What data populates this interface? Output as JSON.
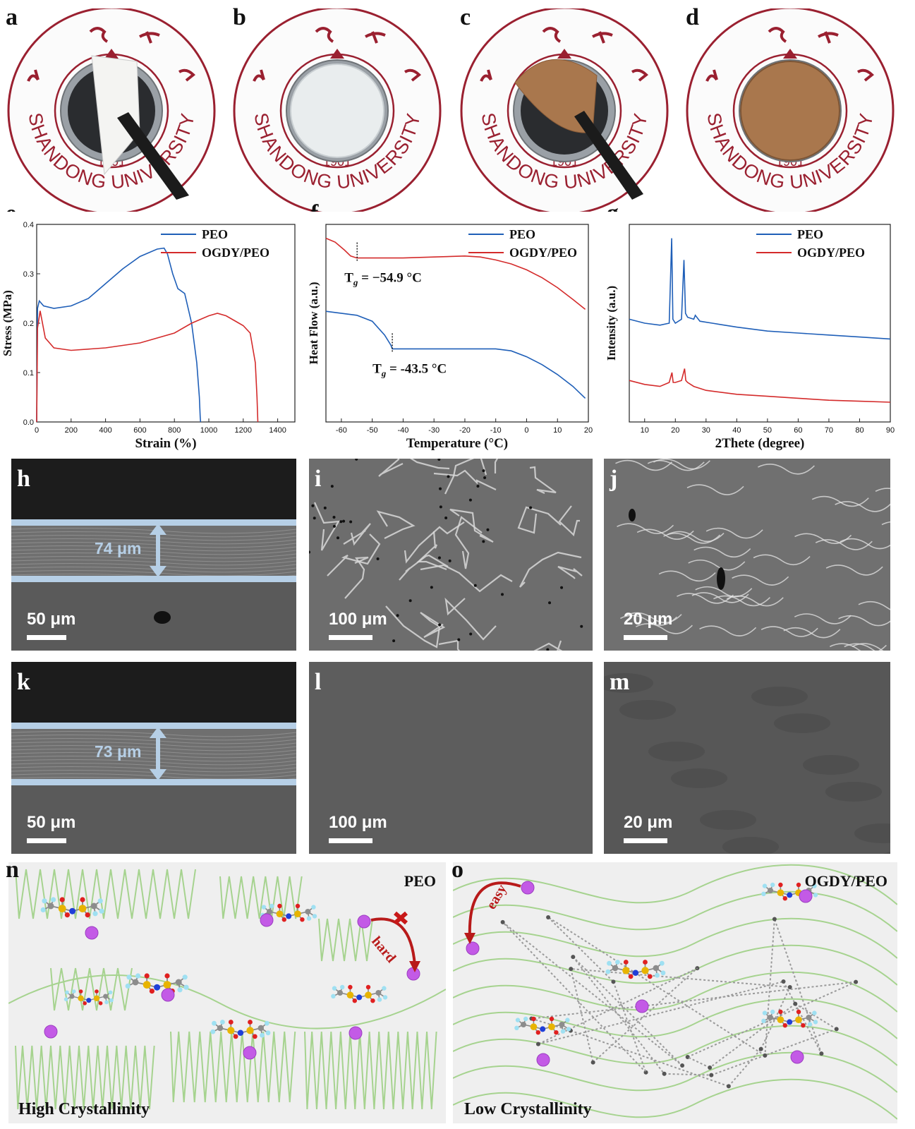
{
  "panels": {
    "a": "a",
    "b": "b",
    "c": "c",
    "d": "d",
    "e": "e",
    "f": "f",
    "g": "g",
    "h": "h",
    "i": "i",
    "j": "j",
    "k": "k",
    "l": "l",
    "m": "m",
    "n": "n",
    "o": "o"
  },
  "photos": {
    "seal_text": "SHANDONG UNIVERSITY",
    "seal_year": "1901",
    "membranes": [
      "peeling white PEO film",
      "white PEO film",
      "peeling brown OGDY/PEO film",
      "brown OGDY/PEO film"
    ]
  },
  "colors": {
    "peo": "#1f5fb8",
    "ogdy": "#d42b2b",
    "seal_red": "#9a2030",
    "film_brown": "#a9774d",
    "chain_green": "#a6d38f"
  },
  "chart_data": [
    {
      "type": "line",
      "panel": "e",
      "xlabel": "Strain (%)",
      "ylabel": "Stress (MPa)",
      "xlim": [
        0,
        1500
      ],
      "ylim": [
        0,
        0.4
      ],
      "xticks": [
        "0",
        "200",
        "400",
        "600",
        "800",
        "1000",
        "1200",
        "1400"
      ],
      "yticks": [
        "0.0",
        "0.1",
        "0.2",
        "0.3",
        "0.4"
      ],
      "legend_position": "top-right",
      "series": [
        {
          "name": "PEO",
          "color": "#1f5fb8",
          "x": [
            0,
            5,
            15,
            40,
            100,
            200,
            300,
            400,
            500,
            600,
            700,
            740,
            760,
            790,
            820,
            860,
            900,
            930,
            945,
            950,
            952
          ],
          "y": [
            0,
            0.23,
            0.245,
            0.235,
            0.23,
            0.235,
            0.25,
            0.28,
            0.31,
            0.335,
            0.35,
            0.352,
            0.34,
            0.3,
            0.27,
            0.26,
            0.2,
            0.12,
            0.05,
            0.01,
            0
          ]
        },
        {
          "name": "OGDY/PEO",
          "color": "#d42b2b",
          "x": [
            0,
            5,
            20,
            50,
            100,
            200,
            400,
            600,
            800,
            900,
            1000,
            1050,
            1100,
            1150,
            1200,
            1240,
            1270,
            1280,
            1285
          ],
          "y": [
            0,
            0.19,
            0.225,
            0.17,
            0.15,
            0.145,
            0.15,
            0.16,
            0.18,
            0.2,
            0.215,
            0.22,
            0.215,
            0.205,
            0.195,
            0.18,
            0.12,
            0.05,
            0
          ]
        }
      ]
    },
    {
      "type": "line",
      "panel": "f",
      "xlabel": "Temperature (°C)",
      "ylabel": "Heat Flow (a.u.)",
      "xlim": [
        -65,
        20
      ],
      "xticks": [
        "-60",
        "-50",
        "-40",
        "-30",
        "-20",
        "-10",
        "0",
        "10",
        "20"
      ],
      "legend_position": "top-right",
      "annotations": [
        {
          "text": "= −54.9 °C",
          "sym": "T",
          "sub": "g",
          "x": -54.9,
          "series": "OGDY/PEO"
        },
        {
          "text": "= -43.5 °C",
          "sym": "T",
          "sub": "g",
          "x": -43.5,
          "series": "PEO"
        }
      ],
      "series": [
        {
          "name": "PEO",
          "color": "#1f5fb8",
          "x": [
            -65,
            -55,
            -50,
            -46,
            -44,
            -43.5,
            -40,
            -30,
            -20,
            -10,
            -5,
            0,
            5,
            10,
            15,
            19
          ],
          "y": [
            0.56,
            0.54,
            0.51,
            0.44,
            0.39,
            0.37,
            0.37,
            0.37,
            0.37,
            0.37,
            0.36,
            0.33,
            0.29,
            0.24,
            0.18,
            0.12
          ]
        },
        {
          "name": "OGDY/PEO",
          "color": "#d42b2b",
          "x": [
            -65,
            -62,
            -59,
            -57,
            -55,
            -54.9,
            -50,
            -40,
            -30,
            -20,
            -15,
            -10,
            -5,
            0,
            5,
            10,
            15,
            19
          ],
          "y": [
            0.93,
            0.91,
            0.87,
            0.84,
            0.83,
            0.83,
            0.83,
            0.83,
            0.835,
            0.84,
            0.835,
            0.82,
            0.8,
            0.77,
            0.73,
            0.68,
            0.62,
            0.57
          ]
        }
      ]
    },
    {
      "type": "line",
      "panel": "g",
      "xlabel": "2Thete (degree)",
      "ylabel": "Intensity (a.u.)",
      "xlim": [
        5,
        90
      ],
      "xticks": [
        "10",
        "20",
        "30",
        "40",
        "50",
        "60",
        "70",
        "80",
        "90"
      ],
      "legend_position": "top-right",
      "series": [
        {
          "name": "PEO",
          "color": "#1f5fb8",
          "x": [
            5,
            10,
            15,
            18,
            18.8,
            19.2,
            20,
            22,
            22.8,
            23.3,
            24,
            26,
            26.5,
            28,
            32,
            36,
            40,
            50,
            60,
            70,
            80,
            90
          ],
          "y": [
            0.52,
            0.5,
            0.49,
            0.5,
            0.93,
            0.52,
            0.5,
            0.52,
            0.82,
            0.55,
            0.53,
            0.52,
            0.54,
            0.51,
            0.5,
            0.49,
            0.48,
            0.46,
            0.45,
            0.44,
            0.43,
            0.42
          ]
        },
        {
          "name": "OGDY/PEO",
          "color": "#d42b2b",
          "x": [
            5,
            10,
            15,
            18,
            18.9,
            19.3,
            20,
            22,
            23,
            23.4,
            24,
            26,
            30,
            40,
            50,
            60,
            70,
            80,
            90
          ],
          "y": [
            0.21,
            0.19,
            0.18,
            0.2,
            0.25,
            0.2,
            0.2,
            0.21,
            0.27,
            0.21,
            0.2,
            0.18,
            0.16,
            0.14,
            0.13,
            0.12,
            0.11,
            0.105,
            0.1
          ]
        }
      ]
    }
  ],
  "sem": {
    "h": {
      "scale": "50 μm",
      "thickness": "74 μm"
    },
    "i": {
      "scale": "100 μm"
    },
    "j": {
      "scale": "20 μm"
    },
    "k": {
      "scale": "50 μm",
      "thickness": "73 μm"
    },
    "l": {
      "scale": "100 μm"
    },
    "m": {
      "scale": "20 μm"
    }
  },
  "schematic": {
    "n": {
      "title": "PEO",
      "footer": "High Crystallinity",
      "arrow_label": "hard"
    },
    "o": {
      "title": "OGDY/PEO",
      "footer": "Low Crystallinity",
      "arrow_label": "easy"
    }
  }
}
